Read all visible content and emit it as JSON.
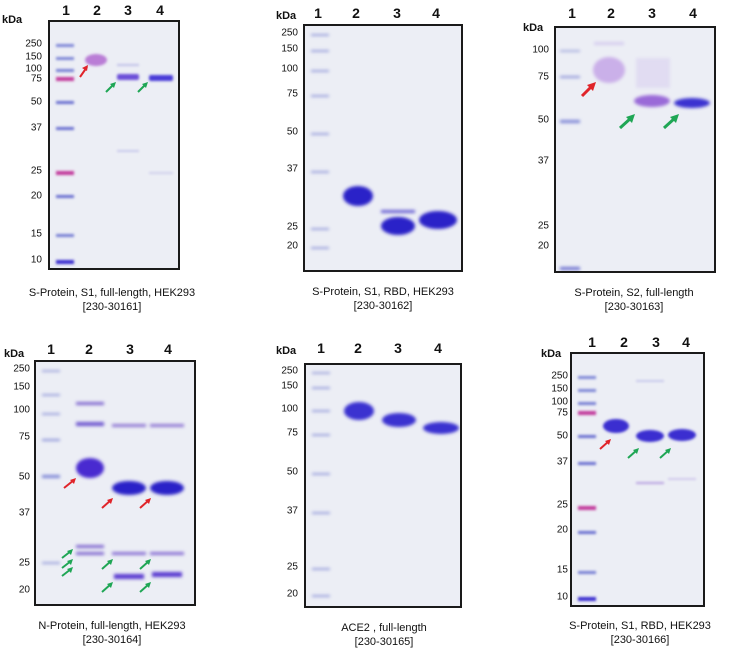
{
  "panels": [
    {
      "kda": "kDa",
      "lanes": [
        "1",
        "2",
        "3",
        "4"
      ],
      "markers": [
        "250",
        "150",
        "100",
        "75",
        "50",
        "37",
        "25",
        "20",
        "15",
        "10"
      ],
      "caption_line1": "S-Protein, S1, full-length, HEK293",
      "caption_line2": "[230-30161]",
      "arrows": {
        "red": 1,
        "green": 2
      }
    },
    {
      "kda": "kDa",
      "lanes": [
        "1",
        "2",
        "3",
        "4"
      ],
      "markers": [
        "250",
        "150",
        "100",
        "75",
        "50",
        "37",
        "25",
        "20"
      ],
      "caption_line1": "S-Protein, S1, RBD, HEK293",
      "caption_line2": "[230-30162]",
      "arrows": {
        "red": 0,
        "green": 0
      }
    },
    {
      "kda": "kDa",
      "lanes": [
        "1",
        "2",
        "3",
        "4"
      ],
      "markers": [
        "100",
        "75",
        "50",
        "37",
        "25",
        "20"
      ],
      "caption_line1": "S-Protein, S2, full-length",
      "caption_line2": "[230-30163]",
      "arrows": {
        "red": 1,
        "green": 2
      }
    },
    {
      "kda": "kDa",
      "lanes": [
        "1",
        "2",
        "3",
        "4"
      ],
      "markers": [
        "250",
        "150",
        "100",
        "75",
        "50",
        "37",
        "25",
        "20"
      ],
      "caption_line1": "N-Protein, full-length, HEK293",
      "caption_line2": "[230-30164]",
      "arrows": {
        "red": 3,
        "green": 7
      }
    },
    {
      "kda": "kDa",
      "lanes": [
        "1",
        "2",
        "3",
        "4"
      ],
      "markers": [
        "250",
        "150",
        "100",
        "75",
        "50",
        "37",
        "25",
        "20"
      ],
      "caption_line1": "ACE2 , full-length",
      "caption_line2": "[230-30165]",
      "arrows": {
        "red": 0,
        "green": 0
      }
    },
    {
      "kda": "kDa",
      "lanes": [
        "1",
        "2",
        "3",
        "4"
      ],
      "markers": [
        "250",
        "150",
        "100",
        "75",
        "50",
        "37",
        "25",
        "20",
        "15",
        "10"
      ],
      "caption_line1": "S-Protein, S1, RBD, HEK293",
      "caption_line2": "[230-30166]",
      "arrows": {
        "red": 1,
        "green": 2
      }
    }
  ],
  "colors": {
    "band_blue": "#3a2fd0",
    "band_violet": "#7a55d8",
    "marker_pink": "#c23a9c",
    "arrow_red": "#e0242a",
    "arrow_green": "#1fa655"
  }
}
